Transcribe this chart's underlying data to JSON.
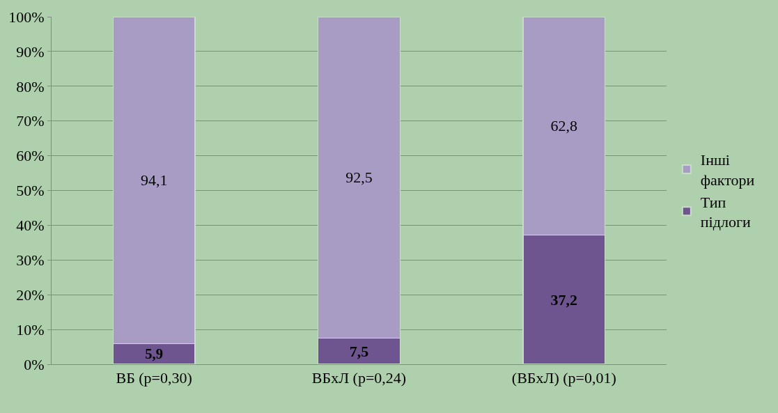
{
  "chart_data": {
    "type": "bar",
    "stacked": true,
    "categories": [
      "ВБ (p=0,30)",
      "ВБхЛ (p=0,24)",
      "(ВБхЛ) (p=0,01)"
    ],
    "series": [
      {
        "name": "Тип підлоги",
        "color": "#6f558f",
        "values": [
          5.9,
          7.5,
          37.2
        ],
        "value_labels": [
          "5,9",
          "7,5",
          "37,2"
        ]
      },
      {
        "name": "Інші фактори",
        "color": "#a99cc4",
        "values": [
          94.1,
          92.5,
          62.8
        ],
        "value_labels": [
          "94,1",
          "92,5",
          "62,8"
        ]
      }
    ],
    "ylim": [
      0,
      100
    ],
    "yticks": [
      {
        "value": 0,
        "label": "0%"
      },
      {
        "value": 10,
        "label": "10%"
      },
      {
        "value": 20,
        "label": "20%"
      },
      {
        "value": 30,
        "label": "30%"
      },
      {
        "value": 40,
        "label": "40%"
      },
      {
        "value": 50,
        "label": "50%"
      },
      {
        "value": 60,
        "label": "60%"
      },
      {
        "value": 70,
        "label": "70%"
      },
      {
        "value": 80,
        "label": "80%"
      },
      {
        "value": 90,
        "label": "90%"
      },
      {
        "value": 100,
        "label": "100%"
      }
    ],
    "grid": "y",
    "legend": "right"
  }
}
